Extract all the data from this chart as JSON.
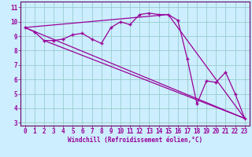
{
  "xlabel": "Windchill (Refroidissement éolien,°C)",
  "bg_color": "#cceeff",
  "line_color": "#990099",
  "grid_color": "#99cccc",
  "spine_color": "#660066",
  "xlim": [
    -0.5,
    23.5
  ],
  "ylim": [
    2.8,
    11.4
  ],
  "xticks": [
    0,
    1,
    2,
    3,
    4,
    5,
    6,
    7,
    8,
    9,
    10,
    11,
    12,
    13,
    14,
    15,
    16,
    17,
    18,
    19,
    20,
    21,
    22,
    23
  ],
  "yticks": [
    3,
    4,
    5,
    6,
    7,
    8,
    9,
    10,
    11
  ],
  "line1_x": [
    0,
    1,
    2,
    3,
    4,
    5,
    6,
    7,
    8,
    9,
    10,
    11,
    12,
    13,
    14,
    15,
    16,
    17,
    18,
    19,
    20,
    21,
    22,
    23
  ],
  "line1_y": [
    9.6,
    9.3,
    8.7,
    8.7,
    8.8,
    9.1,
    9.2,
    8.8,
    8.5,
    9.6,
    10.0,
    9.8,
    10.5,
    10.6,
    10.5,
    10.5,
    10.1,
    7.4,
    4.3,
    5.9,
    5.8,
    6.5,
    5.0,
    3.3
  ],
  "line2_x": [
    0,
    23
  ],
  "line2_y": [
    9.6,
    3.3
  ],
  "line3_x": [
    0,
    15,
    23
  ],
  "line3_y": [
    9.6,
    10.5,
    3.3
  ],
  "line4_x": [
    2,
    23
  ],
  "line4_y": [
    8.7,
    3.3
  ],
  "tick_fontsize": 5.5,
  "label_fontsize": 5.5
}
